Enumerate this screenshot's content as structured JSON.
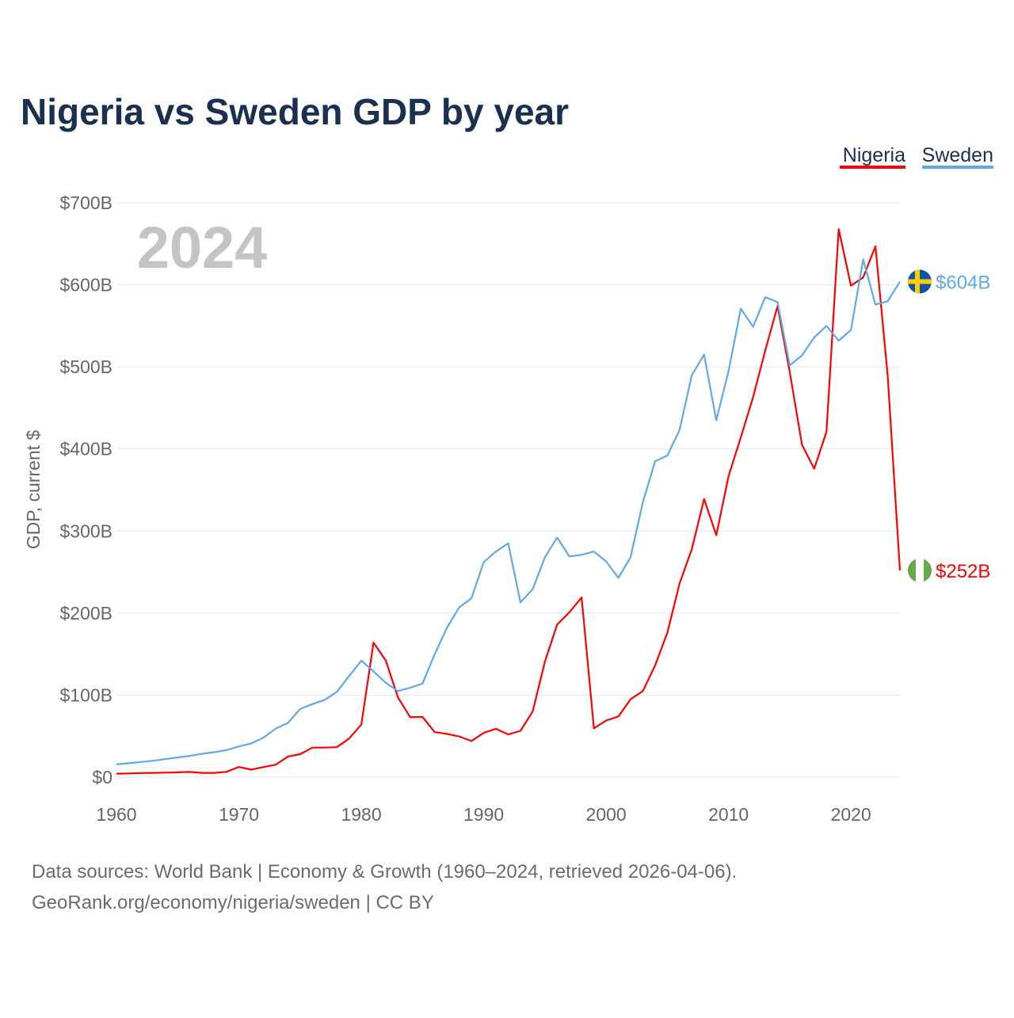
{
  "chart_data": {
    "type": "line",
    "title": "Nigeria vs Sweden GDP by year",
    "xlabel": "",
    "ylabel": "GDP, current $",
    "xlim": [
      1960,
      2024
    ],
    "ylim": [
      0,
      700
    ],
    "x_ticks": [
      1960,
      1970,
      1980,
      1990,
      2000,
      2010,
      2020
    ],
    "x_tick_labels": [
      "1960",
      "1970",
      "1980",
      "1990",
      "2000",
      "2010",
      "2020"
    ],
    "y_ticks": [
      0,
      100,
      200,
      300,
      400,
      500,
      600,
      700
    ],
    "y_tick_labels": [
      "$0",
      "$100B",
      "$200B",
      "$300B",
      "$400B",
      "$500B",
      "$600B",
      "$700B"
    ],
    "grid": true,
    "legend_position": "top-right",
    "year_watermark": "2024",
    "units": "billion US$",
    "x": [
      1960,
      1961,
      1962,
      1963,
      1964,
      1965,
      1966,
      1967,
      1968,
      1969,
      1970,
      1971,
      1972,
      1973,
      1974,
      1975,
      1976,
      1977,
      1978,
      1979,
      1980,
      1981,
      1982,
      1983,
      1984,
      1985,
      1986,
      1987,
      1988,
      1989,
      1990,
      1991,
      1992,
      1993,
      1994,
      1995,
      1996,
      1997,
      1998,
      1999,
      2000,
      2001,
      2002,
      2003,
      2004,
      2005,
      2006,
      2007,
      2008,
      2009,
      2010,
      2011,
      2012,
      2013,
      2014,
      2015,
      2016,
      2017,
      2018,
      2019,
      2020,
      2021,
      2022,
      2023,
      2024
    ],
    "series": [
      {
        "name": "Nigeria",
        "color": "#ff0000",
        "end_label": "$252B",
        "values": [
          4.2,
          4.5,
          5.0,
          5.2,
          5.5,
          5.9,
          6.4,
          5.2,
          5.2,
          6.6,
          12.5,
          9.2,
          12.3,
          15.2,
          25,
          28,
          36,
          36,
          36.5,
          47,
          64,
          164,
          142,
          97,
          73,
          73.5,
          54.8,
          52.7,
          49.6,
          44,
          54,
          59,
          52,
          56.5,
          80,
          141,
          186,
          201,
          219,
          59.4,
          69,
          74,
          95,
          105,
          136,
          176,
          236,
          278,
          339,
          295,
          367,
          414,
          463,
          520,
          574,
          494,
          405,
          376,
          421,
          668,
          599,
          609,
          647,
          490,
          252
        ]
      },
      {
        "name": "Sweden",
        "color": "#5ea8ec",
        "end_label": "$604B",
        "values": [
          15.5,
          17,
          18.5,
          20,
          22,
          24,
          26,
          28.5,
          30.5,
          33,
          37.5,
          41,
          48,
          59,
          66,
          83,
          89,
          94,
          104,
          123,
          142,
          129,
          115,
          105,
          109,
          114,
          150,
          182,
          207,
          218,
          262,
          275,
          285,
          213,
          229,
          268,
          292,
          269,
          271,
          275,
          263,
          243,
          268,
          335,
          385,
          392,
          423,
          490,
          515,
          435,
          495,
          571,
          549,
          585,
          579,
          502,
          514,
          536,
          550,
          532,
          545,
          631,
          576,
          580,
          604
        ]
      }
    ]
  },
  "footer": {
    "line1": "Data sources: World Bank | Economy & Growth (1960–2024, retrieved 2026-04-06).",
    "line2": "GeoRank.org/economy/nigeria/sweden | CC BY"
  }
}
